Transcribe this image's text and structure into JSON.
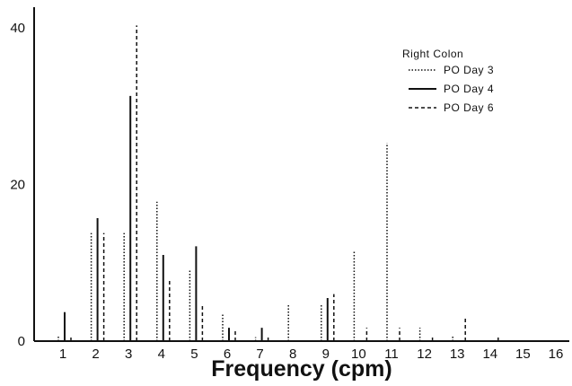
{
  "chart_data": {
    "type": "bar",
    "title": "",
    "xlabel": "Frequency (cpm)",
    "ylabel": "",
    "categories": [
      "1",
      "2",
      "3",
      "4",
      "5",
      "6",
      "7",
      "8",
      "9",
      "10",
      "11",
      "12",
      "13",
      "14",
      "15",
      "16"
    ],
    "ylim": [
      0,
      40
    ],
    "yticks": [
      "0",
      "20",
      "40"
    ],
    "grid": false,
    "legend": {
      "title": "Right Colon",
      "position": "top-right",
      "entries": [
        "PO Day 3",
        "PO Day 4",
        "PO Day 6"
      ]
    },
    "series": [
      {
        "name": "PO Day 3",
        "style": "dotted",
        "values": [
          0.7,
          13.8,
          13.8,
          17.8,
          9.2,
          3.5,
          0.5,
          4.6,
          4.6,
          11.5,
          25.3,
          1.7,
          0.6,
          0,
          0,
          0
        ]
      },
      {
        "name": "PO Day 4",
        "style": "solid",
        "values": [
          3.7,
          15.7,
          31.3,
          11.0,
          12.1,
          1.7,
          1.7,
          0,
          5.5,
          0,
          0,
          0,
          0,
          0,
          0,
          0
        ]
      },
      {
        "name": "PO Day 6",
        "style": "dashed",
        "values": [
          0.7,
          13.8,
          40.3,
          7.9,
          4.8,
          1.5,
          0.6,
          0,
          6.0,
          1.7,
          1.7,
          0.7,
          3.2,
          0.7,
          0,
          0
        ]
      }
    ]
  }
}
